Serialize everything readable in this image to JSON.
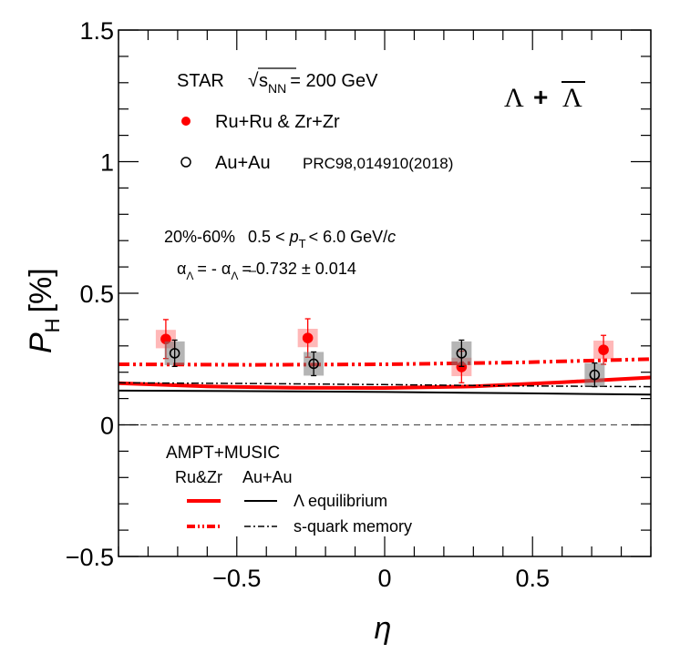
{
  "chart_data": {
    "type": "scatter",
    "xlabel": "η",
    "ylabel": "P",
    "ylabel_sub": "H",
    "ylabel_unit": "[%]",
    "xlim": [
      -0.9,
      0.9
    ],
    "ylim": [
      -0.5,
      1.5
    ],
    "x_ticks": [
      {
        "value": -0.5,
        "label": "−0.5"
      },
      {
        "value": 0,
        "label": "0"
      },
      {
        "value": 0.5,
        "label": "0.5"
      }
    ],
    "y_ticks": [
      {
        "value": -0.5,
        "label": "−0.5"
      },
      {
        "value": 0,
        "label": "0"
      },
      {
        "value": 0.5,
        "label": "0.5"
      },
      {
        "value": 1,
        "label": "1"
      },
      {
        "value": 1.5,
        "label": "1.5"
      }
    ],
    "grid": false,
    "zero_line": true,
    "experiment_label": {
      "prefix": "STAR",
      "sqrt_sym": "√",
      "s": "s",
      "sub": "NN",
      "suffix": "= 200 GeV"
    },
    "particle_label": {
      "lam": "Λ",
      "plus": "+",
      "lambar": "Λ"
    },
    "series": [
      {
        "name": "Ru+Ru & Zr+Zr",
        "marker": "filled-circle",
        "color": "#ff0000",
        "points": [
          {
            "x": -0.74,
            "y": 0.326,
            "stat": 0.074,
            "sys": 0.035
          },
          {
            "x": -0.26,
            "y": 0.33,
            "stat": 0.073,
            "sys": 0.035
          },
          {
            "x": 0.26,
            "y": 0.22,
            "stat": 0.06,
            "sys": 0.035
          },
          {
            "x": 0.74,
            "y": 0.285,
            "stat": 0.055,
            "sys": 0.035
          }
        ]
      },
      {
        "name": "Au+Au",
        "ref": "PRC98,014910(2018)",
        "marker": "open-circle",
        "color": "#000000",
        "points": [
          {
            "x": -0.71,
            "y": 0.272,
            "stat": 0.05,
            "sys": 0.045
          },
          {
            "x": -0.24,
            "y": 0.232,
            "stat": 0.045,
            "sys": 0.045
          },
          {
            "x": 0.26,
            "y": 0.272,
            "stat": 0.05,
            "sys": 0.045
          },
          {
            "x": 0.71,
            "y": 0.19,
            "stat": 0.045,
            "sys": 0.045
          }
        ]
      }
    ],
    "model_curves": [
      {
        "system": "Ru&Zr",
        "label": "Λ equilibrium",
        "color": "#ff0000",
        "style": "solid",
        "width": 4,
        "x": [
          -0.9,
          -0.6,
          -0.3,
          0,
          0.3,
          0.6,
          0.9
        ],
        "y": [
          0.158,
          0.146,
          0.141,
          0.14,
          0.146,
          0.162,
          0.18
        ]
      },
      {
        "system": "Au+Au",
        "label": "Λ equilibrium",
        "color": "#000000",
        "style": "solid",
        "width": 2,
        "x": [
          -0.9,
          -0.45,
          0,
          0.45,
          0.9
        ],
        "y": [
          0.13,
          0.128,
          0.125,
          0.12,
          0.115
        ]
      },
      {
        "system": "Ru&Zr",
        "label": "s-quark memory",
        "color": "#ff0000",
        "style": "dashdotdot",
        "width": 4,
        "x": [
          -0.9,
          -0.45,
          0,
          0.45,
          0.9
        ],
        "y": [
          0.23,
          0.228,
          0.23,
          0.237,
          0.25
        ]
      },
      {
        "system": "Au+Au",
        "label": "s-quark memory",
        "color": "#000000",
        "style": "dashdot",
        "width": 1.5,
        "x": [
          -0.9,
          -0.45,
          0,
          0.45,
          0.9
        ],
        "y": [
          0.16,
          0.157,
          0.153,
          0.148,
          0.145
        ]
      }
    ],
    "annotations": {
      "centrality": "20%-60%",
      "pt_range": {
        "pre": "0.5 <",
        "p": "p",
        "sub": "T",
        "post": "< 6.0 GeV/",
        "c": "c"
      },
      "alpha": {
        "a1": "α",
        "s1": "Λ",
        "mid": "= - α",
        "s2": "Λ",
        "post": "= 0.732 ± 0.014"
      }
    },
    "model_legend": {
      "title": "AMPT+MUSIC",
      "col1": "Ru&Zr",
      "col2": "Au+Au"
    }
  }
}
